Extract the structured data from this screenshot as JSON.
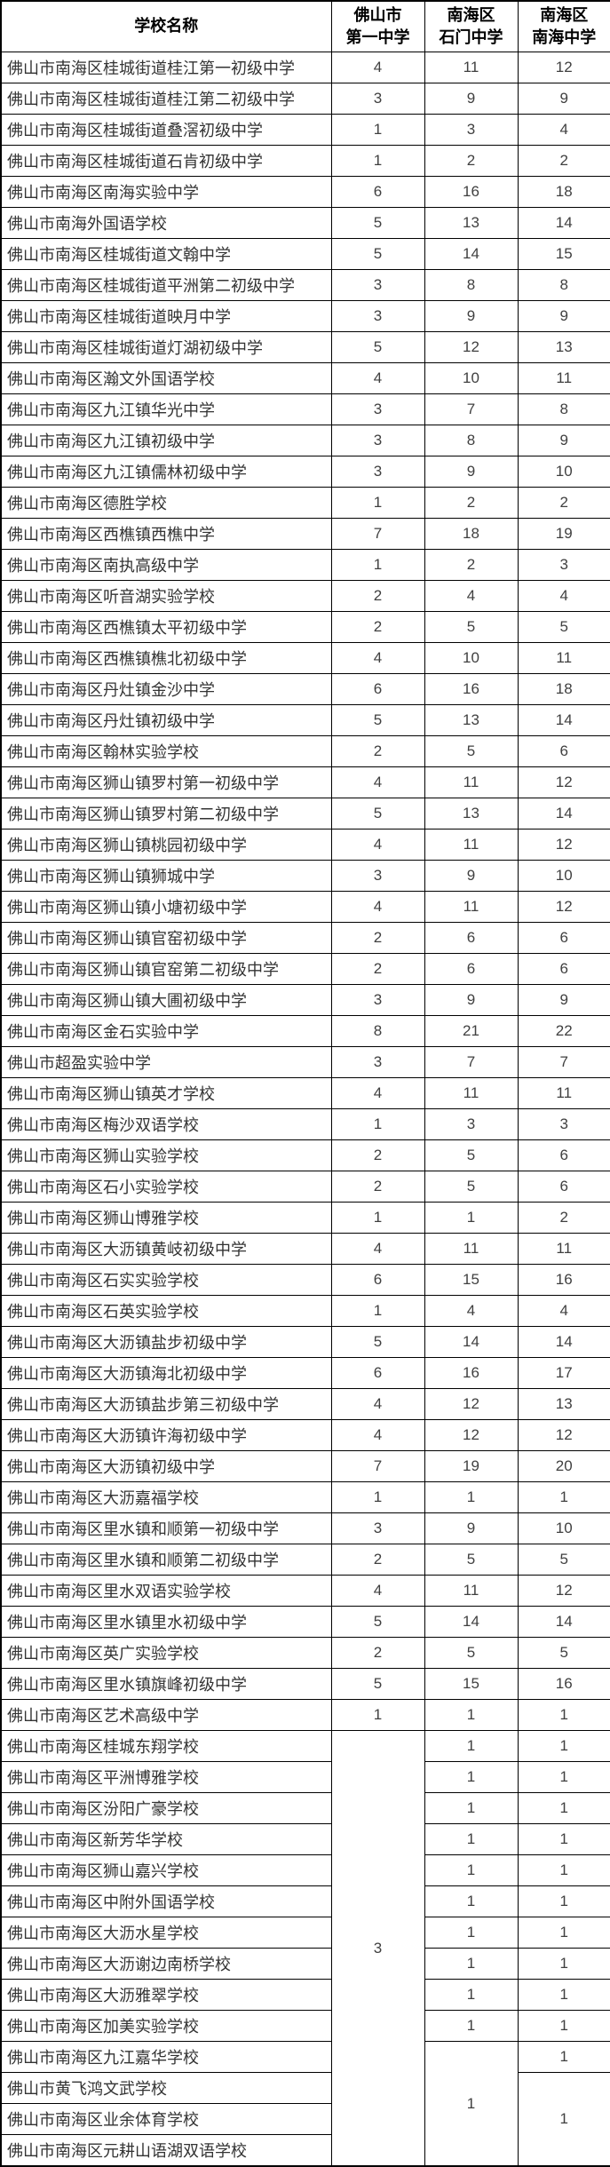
{
  "colors": {
    "border": "#000000",
    "header_text": "#000000",
    "name_text": "#333333",
    "value_text": "#404040",
    "background": "#ffffff"
  },
  "table": {
    "columns": [
      {
        "label": "学校名称",
        "line1": "学校名称",
        "line2": ""
      },
      {
        "label": "佛山市第一中学",
        "line1": "佛山市",
        "line2": "第一中学"
      },
      {
        "label": "南海区石门中学",
        "line1": "南海区",
        "line2": "石门中学"
      },
      {
        "label": "南海区南海中学",
        "line1": "南海区",
        "line2": "南海中学"
      }
    ],
    "rows": [
      {
        "name": "佛山市南海区桂城街道桂江第一初级中学",
        "cells": [
          "4",
          "11",
          "12"
        ]
      },
      {
        "name": "佛山市南海区桂城街道桂江第二初级中学",
        "cells": [
          "3",
          "9",
          "9"
        ]
      },
      {
        "name": "佛山市南海区桂城街道叠滘初级中学",
        "cells": [
          "1",
          "3",
          "4"
        ]
      },
      {
        "name": "佛山市南海区桂城街道石肯初级中学",
        "cells": [
          "1",
          "2",
          "2"
        ]
      },
      {
        "name": "佛山市南海区南海实验中学",
        "cells": [
          "6",
          "16",
          "18"
        ]
      },
      {
        "name": "佛山市南海外国语学校",
        "cells": [
          "5",
          "13",
          "14"
        ]
      },
      {
        "name": "佛山市南海区桂城街道文翰中学",
        "cells": [
          "5",
          "14",
          "15"
        ]
      },
      {
        "name": "佛山市南海区桂城街道平洲第二初级中学",
        "cells": [
          "3",
          "8",
          "8"
        ]
      },
      {
        "name": "佛山市南海区桂城街道映月中学",
        "cells": [
          "3",
          "9",
          "9"
        ]
      },
      {
        "name": "佛山市南海区桂城街道灯湖初级中学",
        "cells": [
          "5",
          "12",
          "13"
        ]
      },
      {
        "name": "佛山市南海区瀚文外国语学校",
        "cells": [
          "4",
          "10",
          "11"
        ]
      },
      {
        "name": "佛山市南海区九江镇华光中学",
        "cells": [
          "3",
          "7",
          "8"
        ]
      },
      {
        "name": "佛山市南海区九江镇初级中学",
        "cells": [
          "3",
          "8",
          "9"
        ]
      },
      {
        "name": "佛山市南海区九江镇儒林初级中学",
        "cells": [
          "3",
          "9",
          "10"
        ]
      },
      {
        "name": "佛山市南海区德胜学校",
        "cells": [
          "1",
          "2",
          "2"
        ]
      },
      {
        "name": "佛山市南海区西樵镇西樵中学",
        "cells": [
          "7",
          "18",
          "19"
        ]
      },
      {
        "name": "佛山市南海区南执高级中学",
        "cells": [
          "1",
          "2",
          "3"
        ]
      },
      {
        "name": "佛山市南海区听音湖实验学校",
        "cells": [
          "2",
          "4",
          "4"
        ]
      },
      {
        "name": "佛山市南海区西樵镇太平初级中学",
        "cells": [
          "2",
          "5",
          "5"
        ]
      },
      {
        "name": "佛山市南海区西樵镇樵北初级中学",
        "cells": [
          "4",
          "10",
          "11"
        ]
      },
      {
        "name": "佛山市南海区丹灶镇金沙中学",
        "cells": [
          "6",
          "16",
          "18"
        ]
      },
      {
        "name": "佛山市南海区丹灶镇初级中学",
        "cells": [
          "5",
          "13",
          "14"
        ]
      },
      {
        "name": "佛山市南海区翰林实验学校",
        "cells": [
          "2",
          "5",
          "6"
        ]
      },
      {
        "name": "佛山市南海区狮山镇罗村第一初级中学",
        "cells": [
          "4",
          "11",
          "12"
        ]
      },
      {
        "name": "佛山市南海区狮山镇罗村第二初级中学",
        "cells": [
          "5",
          "13",
          "14"
        ]
      },
      {
        "name": "佛山市南海区狮山镇桃园初级中学",
        "cells": [
          "4",
          "11",
          "12"
        ]
      },
      {
        "name": "佛山市南海区狮山镇狮城中学",
        "cells": [
          "3",
          "9",
          "10"
        ]
      },
      {
        "name": "佛山市南海区狮山镇小塘初级中学",
        "cells": [
          "4",
          "11",
          "12"
        ]
      },
      {
        "name": "佛山市南海区狮山镇官窑初级中学",
        "cells": [
          "2",
          "6",
          "6"
        ]
      },
      {
        "name": "佛山市南海区狮山镇官窑第二初级中学",
        "cells": [
          "2",
          "6",
          "6"
        ]
      },
      {
        "name": "佛山市南海区狮山镇大圃初级中学",
        "cells": [
          "3",
          "9",
          "9"
        ]
      },
      {
        "name": "佛山市南海区金石实验中学",
        "cells": [
          "8",
          "21",
          "22"
        ]
      },
      {
        "name": "佛山市超盈实验中学",
        "cells": [
          "3",
          "7",
          "7"
        ]
      },
      {
        "name": "佛山市南海区狮山镇英才学校",
        "cells": [
          "4",
          "11",
          "11"
        ]
      },
      {
        "name": "佛山市南海区梅沙双语学校",
        "cells": [
          "1",
          "3",
          "3"
        ]
      },
      {
        "name": "佛山市南海区狮山实验学校",
        "cells": [
          "2",
          "5",
          "6"
        ]
      },
      {
        "name": "佛山市南海区石小实验学校",
        "cells": [
          "2",
          "5",
          "6"
        ]
      },
      {
        "name": "佛山市南海区狮山博雅学校",
        "cells": [
          "1",
          "1",
          "2"
        ]
      },
      {
        "name": "佛山市南海区大沥镇黄岐初级中学",
        "cells": [
          "4",
          "11",
          "11"
        ]
      },
      {
        "name": "佛山市南海区石实实验学校",
        "cells": [
          "6",
          "15",
          "16"
        ]
      },
      {
        "name": "佛山市南海区石英实验学校",
        "cells": [
          "1",
          "4",
          "4"
        ]
      },
      {
        "name": "佛山市南海区大沥镇盐步初级中学",
        "cells": [
          "5",
          "14",
          "14"
        ]
      },
      {
        "name": "佛山市南海区大沥镇海北初级中学",
        "cells": [
          "6",
          "16",
          "17"
        ]
      },
      {
        "name": "佛山市南海区大沥镇盐步第三初级中学",
        "cells": [
          "4",
          "12",
          "13"
        ]
      },
      {
        "name": "佛山市南海区大沥镇许海初级中学",
        "cells": [
          "4",
          "12",
          "12"
        ]
      },
      {
        "name": "佛山市南海区大沥镇初级中学",
        "cells": [
          "7",
          "19",
          "20"
        ]
      },
      {
        "name": "佛山市南海区大沥嘉福学校",
        "cells": [
          "1",
          "1",
          "1"
        ]
      },
      {
        "name": "佛山市南海区里水镇和顺第一初级中学",
        "cells": [
          "3",
          "9",
          "10"
        ]
      },
      {
        "name": "佛山市南海区里水镇和顺第二初级中学",
        "cells": [
          "2",
          "5",
          "5"
        ]
      },
      {
        "name": "佛山市南海区里水双语实验学校",
        "cells": [
          "4",
          "11",
          "12"
        ]
      },
      {
        "name": "佛山市南海区里水镇里水初级中学",
        "cells": [
          "5",
          "14",
          "14"
        ]
      },
      {
        "name": "佛山市南海区英广实验学校",
        "cells": [
          "2",
          "5",
          "5"
        ]
      },
      {
        "name": "佛山市南海区里水镇旗峰初级中学",
        "cells": [
          "5",
          "15",
          "16"
        ]
      },
      {
        "name": "佛山市南海区艺术高级中学",
        "cells": [
          "1",
          "1",
          "1"
        ]
      },
      {
        "name": "佛山市南海区桂城东翔学校",
        "cells": [
          {
            "v": "3",
            "span": 14
          },
          "1",
          "1"
        ]
      },
      {
        "name": "佛山市南海区平洲博雅学校",
        "cells": [
          null,
          "1",
          "1"
        ]
      },
      {
        "name": "佛山市南海区汾阳广豪学校",
        "cells": [
          null,
          "1",
          "1"
        ]
      },
      {
        "name": "佛山市南海区新芳华学校",
        "cells": [
          null,
          "1",
          "1"
        ]
      },
      {
        "name": "佛山市南海区狮山嘉兴学校",
        "cells": [
          null,
          "1",
          "1"
        ]
      },
      {
        "name": "佛山市南海区中附外国语学校",
        "cells": [
          null,
          "1",
          "1"
        ]
      },
      {
        "name": "佛山市南海区大沥水星学校",
        "cells": [
          null,
          "1",
          "1"
        ]
      },
      {
        "name": "佛山市南海区大沥谢边南桥学校",
        "cells": [
          null,
          "1",
          "1"
        ]
      },
      {
        "name": "佛山市南海区大沥雅翠学校",
        "cells": [
          null,
          "1",
          "1"
        ]
      },
      {
        "name": "佛山市南海区加美实验学校",
        "cells": [
          null,
          "1",
          "1"
        ]
      },
      {
        "name": "佛山市南海区九江嘉华学校",
        "cells": [
          null,
          {
            "v": "1",
            "span": 4
          },
          "1"
        ]
      },
      {
        "name": "佛山市黄飞鸿文武学校",
        "cells": [
          null,
          null,
          {
            "v": "1",
            "span": 3
          }
        ]
      },
      {
        "name": "佛山市南海区业余体育学校",
        "cells": [
          null,
          null,
          null
        ]
      },
      {
        "name": "佛山市南海区元耕山语湖双语学校",
        "cells": [
          null,
          null,
          null
        ]
      }
    ]
  }
}
